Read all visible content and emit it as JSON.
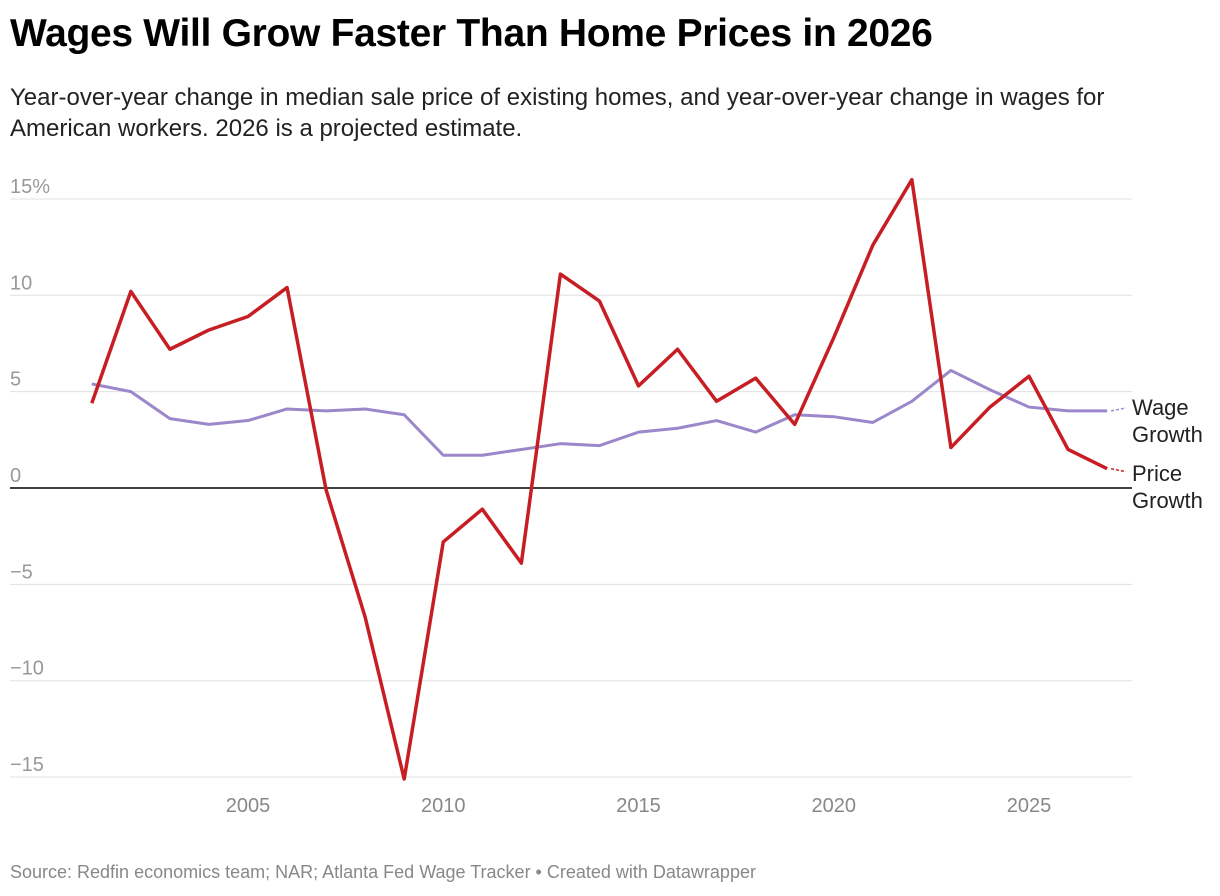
{
  "title": "Wages Will Grow Faster Than Home Prices in 2026",
  "subtitle": "Year-over-year change in median sale price of existing homes, and year-over-year change in wages for American workers. 2026 is a projected estimate.",
  "source": "Source: Redfin economics team; NAR; Atlanta Fed Wage Tracker • Created with Datawrapper",
  "chart_data": {
    "type": "line",
    "title": "Wages Will Grow Faster Than Home Prices in 2026",
    "xlabel": "",
    "ylabel": "",
    "ylim": [
      -15,
      15
    ],
    "yticks": [
      15,
      10,
      5,
      0,
      -5,
      -10,
      -15
    ],
    "ytick_labels": [
      "15%",
      "10",
      "5",
      "0",
      "−5",
      "−10",
      "−15"
    ],
    "xticks": [
      2005,
      2010,
      2015,
      2020,
      2025
    ],
    "grid": true,
    "legend": "inline-right",
    "x": [
      2001,
      2002,
      2003,
      2004,
      2005,
      2006,
      2007,
      2008,
      2009,
      2010,
      2011,
      2012,
      2013,
      2014,
      2015,
      2016,
      2017,
      2018,
      2019,
      2020,
      2021,
      2022,
      2023,
      2024,
      2025,
      2026,
      2027
    ],
    "series": [
      {
        "name": "Wage Growth",
        "color": "#9b87c9",
        "values": [
          5.4,
          5.0,
          3.6,
          3.3,
          3.5,
          4.1,
          4.0,
          4.1,
          3.8,
          1.7,
          1.7,
          2.0,
          2.3,
          2.2,
          2.9,
          3.1,
          3.5,
          2.9,
          3.8,
          3.7,
          3.4,
          4.5,
          6.1,
          5.1,
          4.2,
          4.0,
          4.0
        ]
      },
      {
        "name": "Price Growth",
        "color": "#c71e24",
        "values": [
          4.4,
          10.2,
          7.2,
          8.2,
          8.9,
          10.4,
          -0.1,
          -6.7,
          -15.1,
          -2.8,
          -1.1,
          -3.9,
          11.1,
          9.7,
          5.3,
          7.2,
          4.5,
          5.7,
          3.3,
          7.8,
          12.6,
          16.0,
          2.1,
          4.2,
          5.8,
          2.0,
          1.0
        ]
      }
    ],
    "labels": {
      "wage": [
        "Wage",
        "Growth"
      ],
      "price": [
        "Price",
        "Growth"
      ]
    }
  }
}
